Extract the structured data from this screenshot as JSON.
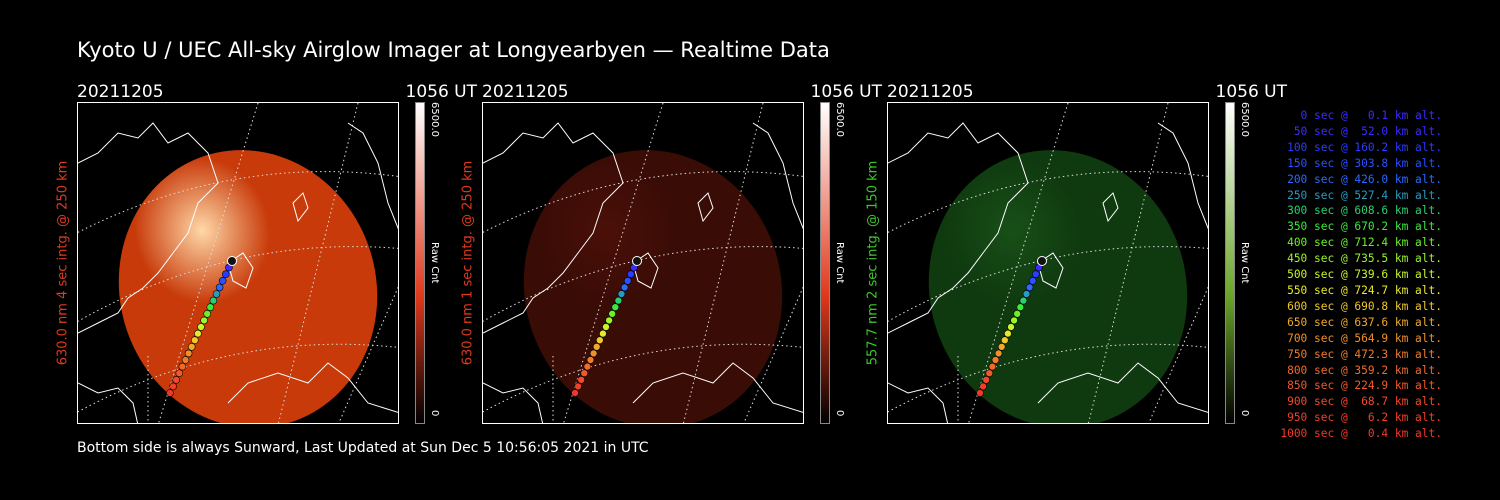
{
  "title": "Kyoto U / UEC All-sky Airglow Imager at Longyearbyen — Realtime Data",
  "footer": "Bottom side is always Sunward, Last Updated at Sun Dec  5 10:56:05 2021 in UTC",
  "panels": [
    {
      "date": "20211205",
      "time": "1056 UT",
      "side_label": "630.0 nm 4 sec intg. @ 250 km",
      "side_color": "#e0391c",
      "cbar_max": "6500.0",
      "cbar_min": "0",
      "cbar_label": "Raw Cnt",
      "image_color": "#c83a0a",
      "bright_color": "#ffd8a8",
      "cbar_top": "#ffffff",
      "cbar_mid": "#e0391c"
    },
    {
      "date": "20211205",
      "time": "1056 UT",
      "side_label": "630.0 nm 1 sec intg. @ 250 km",
      "side_color": "#e0391c",
      "cbar_max": "6500.0",
      "cbar_min": "0",
      "cbar_label": "Raw Cnt",
      "image_color": "#3a0c06",
      "bright_color": "#4a1008",
      "cbar_top": "#ffffff",
      "cbar_mid": "#e0391c"
    },
    {
      "date": "20211205",
      "time": "1056 UT",
      "side_label": "557.7 nm 2 sec intg. @ 150 km",
      "side_color": "#3cc82a",
      "cbar_max": "6500.0",
      "cbar_min": "0",
      "cbar_label": "Raw Cnt",
      "image_color": "#0f3a0f",
      "bright_color": "#184f18",
      "cbar_top": "#ffffff",
      "cbar_mid": "#6aa62a"
    }
  ],
  "legend": [
    {
      "text": "   0 sec @   0.1 km alt.",
      "color": "#3a2cff"
    },
    {
      "text": "  50 sec @  52.0 km alt.",
      "color": "#3a2cff"
    },
    {
      "text": " 100 sec @ 160.2 km alt.",
      "color": "#2a3cff"
    },
    {
      "text": " 150 sec @ 303.8 km alt.",
      "color": "#2a50ff"
    },
    {
      "text": " 200 sec @ 426.0 km alt.",
      "color": "#2a6aff"
    },
    {
      "text": " 250 sec @ 527.4 km alt.",
      "color": "#2a9ac0"
    },
    {
      "text": " 300 sec @ 608.6 km alt.",
      "color": "#2ad070"
    },
    {
      "text": " 350 sec @ 670.2 km alt.",
      "color": "#3aeb3a"
    },
    {
      "text": " 400 sec @ 712.4 km alt.",
      "color": "#6cf02a"
    },
    {
      "text": " 450 sec @ 735.5 km alt.",
      "color": "#9cf42a"
    },
    {
      "text": " 500 sec @ 739.6 km alt.",
      "color": "#c8f42a"
    },
    {
      "text": " 550 sec @ 724.7 km alt.",
      "color": "#e8e82a"
    },
    {
      "text": " 600 sec @ 690.8 km alt.",
      "color": "#f0c82a"
    },
    {
      "text": " 650 sec @ 637.6 km alt.",
      "color": "#f0a82a"
    },
    {
      "text": " 700 sec @ 564.9 km alt.",
      "color": "#f0902a"
    },
    {
      "text": " 750 sec @ 472.3 km alt.",
      "color": "#f07c2a"
    },
    {
      "text": " 800 sec @ 359.2 km alt.",
      "color": "#f06a2a"
    },
    {
      "text": " 850 sec @ 224.9 km alt.",
      "color": "#f05a2a"
    },
    {
      "text": " 900 sec @  68.7 km alt.",
      "color": "#f04a2a"
    },
    {
      "text": " 950 sec @   6.2 km alt.",
      "color": "#f0402a"
    },
    {
      "text": "1000 sec @   0.4 km alt.",
      "color": "#f0382a"
    }
  ]
}
